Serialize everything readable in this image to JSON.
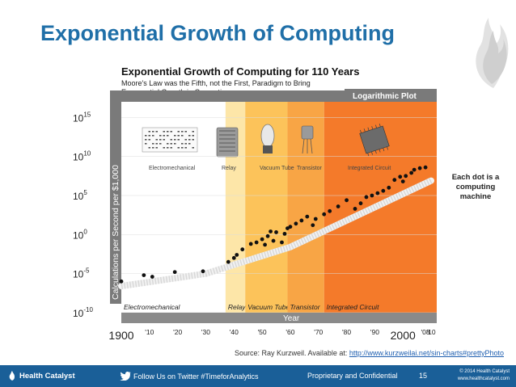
{
  "slide": {
    "title": "Exponential Growth of Computing",
    "note_lines": [
      "Each dot is a",
      "computing",
      "machine"
    ],
    "source_prefix": "Source: Ray Kurzweil. Available at: ",
    "source_link": "http://www.kurzweilai.net/sin-charts#prettyPhoto"
  },
  "footer": {
    "brand": "Health Catalyst",
    "twitter": "Follow Us on Twitter #TimeforAnalytics",
    "confidential": "Proprietary and Confidential",
    "page": "15",
    "copyright_1": "© 2014 Health Catalyst",
    "copyright_2": "www.healthcatalyst.com"
  },
  "colors": {
    "title": "#1f6fa8",
    "footer_bg": "#1a5f98",
    "banner": "#7a7a7a",
    "relay": "#fde6a8",
    "vacuum_tube": "#fcc35a",
    "transistor": "#f8a545",
    "integrated_circuit": "#f47a2a"
  },
  "chart_data": {
    "type": "scatter",
    "title": "Exponential Growth of Computing for 110 Years",
    "subtitle_lines": [
      "Moore's Law was the Fifth, not the First, Paradigm to Bring",
      "Exponential Growth in Computing"
    ],
    "badge": "Logarithmic Plot",
    "ylabel": "Calculations per Second per $1,000",
    "xlabel": "Year",
    "log_scale": true,
    "y_ticks": [
      {
        "base": "10",
        "exp": "15",
        "value": 15
      },
      {
        "base": "10",
        "exp": "10",
        "value": 10
      },
      {
        "base": "10",
        "exp": "5",
        "value": 5
      },
      {
        "base": "10",
        "exp": "0",
        "value": 0
      },
      {
        "base": "10",
        "exp": "-5",
        "value": -5
      },
      {
        "base": "10",
        "exp": "-10",
        "value": -10
      }
    ],
    "ylim": [
      -10,
      17
    ],
    "xlim": [
      1900,
      2012
    ],
    "x_ticks": [
      {
        "label": "1900",
        "value": 1900,
        "big": true
      },
      {
        "label": "'10",
        "value": 1910
      },
      {
        "label": "'20",
        "value": 1920
      },
      {
        "label": "'30",
        "value": 1930
      },
      {
        "label": "'40",
        "value": 1940
      },
      {
        "label": "'50",
        "value": 1950
      },
      {
        "label": "'60",
        "value": 1960
      },
      {
        "label": "'70",
        "value": 1970
      },
      {
        "label": "'80",
        "value": 1980
      },
      {
        "label": "'90",
        "value": 1990
      },
      {
        "label": "2000",
        "value": 2000,
        "big": true
      },
      {
        "label": "'08",
        "value": 2008
      },
      {
        "label": "'10",
        "value": 2010
      }
    ],
    "eras": [
      {
        "name": "Electromechanical",
        "start": 1900,
        "end": 1937,
        "color": "#ffffff",
        "icon_label": "Electromechanical"
      },
      {
        "name": "Relay",
        "start": 1937,
        "end": 1944,
        "color": "#fde6a8",
        "icon_label": "Relay"
      },
      {
        "name": "Vacuum Tube",
        "start": 1944,
        "end": 1959,
        "color": "#fcc35a",
        "icon_label": "Vacuum Tube"
      },
      {
        "name": "Transistor",
        "start": 1959,
        "end": 1972,
        "color": "#f8a545",
        "icon_label": "Transistor"
      },
      {
        "name": "Integrated Circuit",
        "start": 1972,
        "end": 2012,
        "color": "#f47a2a",
        "icon_label": "Integrated Circuit"
      }
    ],
    "trend": [
      [
        1900,
        -6.6
      ],
      [
        1930,
        -5.0
      ],
      [
        1960,
        -1.6
      ],
      [
        1980,
        1.8
      ],
      [
        2010,
        6.9
      ]
    ],
    "points": [
      [
        1900,
        -6.0
      ],
      [
        1908,
        -5.2
      ],
      [
        1911,
        -5.4
      ],
      [
        1919,
        -4.8
      ],
      [
        1929,
        -4.7
      ],
      [
        1938,
        -3.5
      ],
      [
        1940,
        -3.0
      ],
      [
        1941,
        -2.6
      ],
      [
        1943,
        -1.9
      ],
      [
        1946,
        -1.2
      ],
      [
        1948,
        -1.0
      ],
      [
        1950,
        -0.6
      ],
      [
        1951,
        -1.3
      ],
      [
        1952,
        -0.2
      ],
      [
        1953,
        0.4
      ],
      [
        1954,
        -0.8
      ],
      [
        1955,
        0.3
      ],
      [
        1957,
        -1.0
      ],
      [
        1958,
        0.1
      ],
      [
        1959,
        0.8
      ],
      [
        1960,
        1.0
      ],
      [
        1962,
        1.4
      ],
      [
        1964,
        1.8
      ],
      [
        1966,
        2.3
      ],
      [
        1968,
        1.2
      ],
      [
        1969,
        2.0
      ],
      [
        1972,
        2.6
      ],
      [
        1974,
        3.0
      ],
      [
        1977,
        3.6
      ],
      [
        1980,
        4.4
      ],
      [
        1983,
        3.3
      ],
      [
        1985,
        4.0
      ],
      [
        1987,
        4.8
      ],
      [
        1989,
        5.0
      ],
      [
        1991,
        5.3
      ],
      [
        1993,
        5.6
      ],
      [
        1995,
        6.0
      ],
      [
        1997,
        7.0
      ],
      [
        1999,
        7.4
      ],
      [
        2000,
        6.8
      ],
      [
        2001,
        7.5
      ],
      [
        2003,
        7.9
      ],
      [
        2004,
        8.3
      ],
      [
        2006,
        8.5
      ],
      [
        2008,
        8.6
      ]
    ]
  }
}
